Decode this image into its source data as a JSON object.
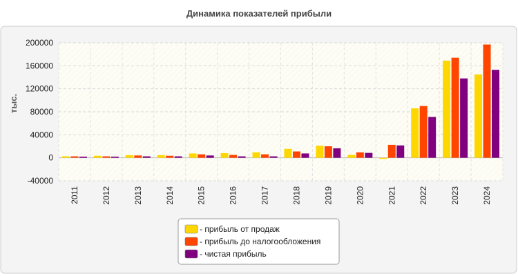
{
  "chart_data": {
    "type": "bar",
    "title": "Динамика показателей прибыли",
    "ylabel": "тыс.",
    "xlabel": "",
    "ylim": [
      -40000,
      200000
    ],
    "yticks": [
      200000,
      160000,
      120000,
      80000,
      40000,
      0,
      -40000
    ],
    "categories": [
      "2011",
      "2012",
      "2013",
      "2014",
      "2015",
      "2016",
      "2017",
      "2018",
      "2019",
      "2020",
      "2021",
      "2022",
      "2023",
      "2024"
    ],
    "series": [
      {
        "name": "прибыль от продаж",
        "color": "#FFD700",
        "values": [
          2500,
          3500,
          4500,
          4500,
          7500,
          8000,
          9500,
          15500,
          21000,
          5000,
          -2000,
          86000,
          169000,
          145000
        ]
      },
      {
        "name": "прибыль до налогообложения",
        "color": "#FF4500",
        "values": [
          2500,
          2500,
          4000,
          3500,
          6000,
          5000,
          6000,
          11000,
          20000,
          9500,
          22500,
          90000,
          174000,
          197000
        ]
      },
      {
        "name": "чистая прибыль",
        "color": "#800080",
        "values": [
          2000,
          2000,
          2500,
          2500,
          4000,
          2500,
          2500,
          7500,
          16500,
          8500,
          21500,
          71000,
          138000,
          153000
        ]
      }
    ],
    "grid": true,
    "legend_position": "bottom-center",
    "legend_prefix": "- "
  }
}
